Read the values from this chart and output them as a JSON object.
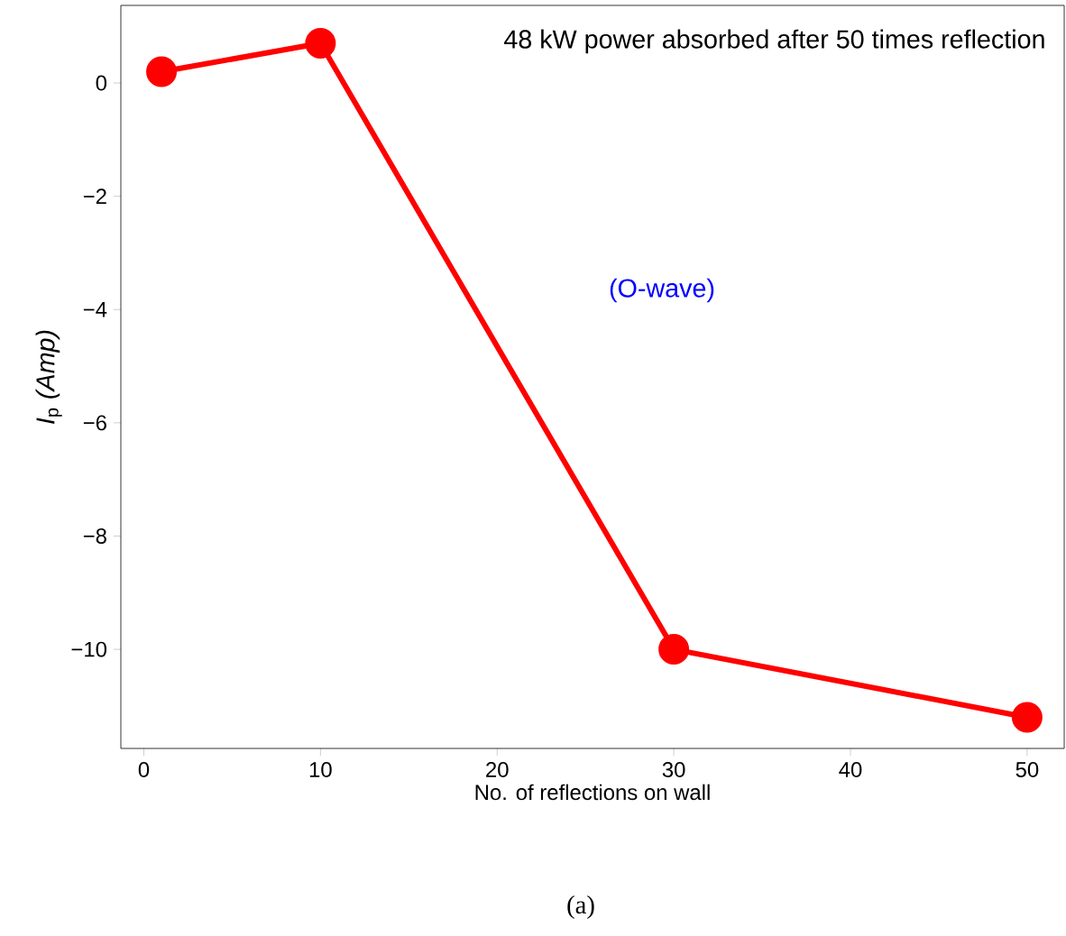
{
  "chart_data": {
    "type": "line",
    "xlabel": "No. of reflections on wall",
    "ylabel": "*I*$_{p}$ *(Amp)*",
    "x": [
      1,
      10,
      30,
      50
    ],
    "series": [
      {
        "color": "#ff0000",
        "values": [
          0.2,
          0.7,
          -10,
          -11.2
        ]
      }
    ],
    "xlim": [
      -1.3,
      52.1
    ],
    "ylim": [
      -11.75,
      1.37
    ],
    "xticks": [
      0,
      10,
      20,
      30,
      40,
      50
    ],
    "yticks": [
      {
        "value": 0,
        "label": "0"
      },
      {
        "value": -2,
        "label": "−2"
      },
      {
        "value": -4,
        "label": "−4"
      },
      {
        "value": -6,
        "label": "−6"
      },
      {
        "value": -8,
        "label": "−8"
      },
      {
        "value": -10,
        "label": "−10"
      }
    ],
    "marker": "circle",
    "line_style": "solid",
    "annotations": [
      "48 kW power absorbed after 50 times reflection",
      "(O-wave)",
      "(a)"
    ]
  }
}
